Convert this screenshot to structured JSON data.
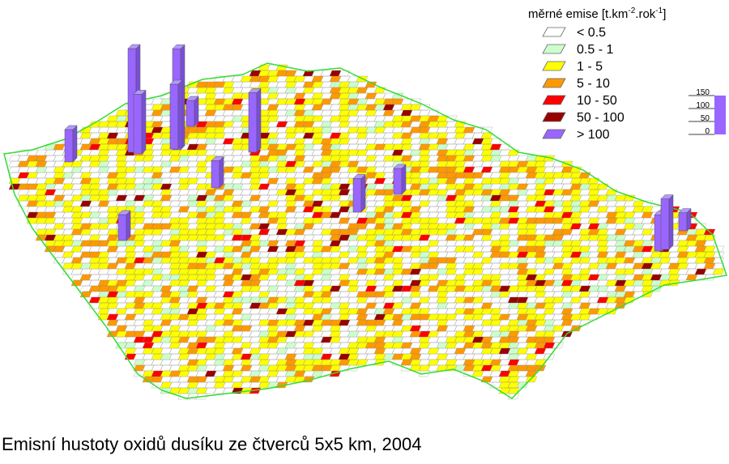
{
  "legend": {
    "title": [
      "měrné emise [t.km",
      "-2",
      ".rok",
      "-1",
      "]"
    ],
    "items": [
      {
        "label": "< 0.5",
        "color": "#ffffff"
      },
      {
        "label": "0.5 - 1",
        "color": "#ccffcc"
      },
      {
        "label": "1 - 5",
        "color": "#ffff00"
      },
      {
        "label": "5 - 10",
        "color": "#ff9900"
      },
      {
        "label": "10 - 50",
        "color": "#ff0000"
      },
      {
        "label": "50 - 100",
        "color": "#990000"
      },
      {
        "label": "> 100",
        "color": "#9966ff"
      }
    ]
  },
  "scale": {
    "ticks": [
      0,
      50,
      100,
      150
    ],
    "color": "#9966ff"
  },
  "peaks": {
    "values": [
      400,
      390,
      230,
      250,
      100,
      230,
      125,
      105,
      100,
      130,
      100,
      140,
      195,
      70
    ],
    "color": "#9966ff"
  },
  "caption": "Emisní hustoty oxidů dusíku ze čtverců 5x5 km, 2004"
}
